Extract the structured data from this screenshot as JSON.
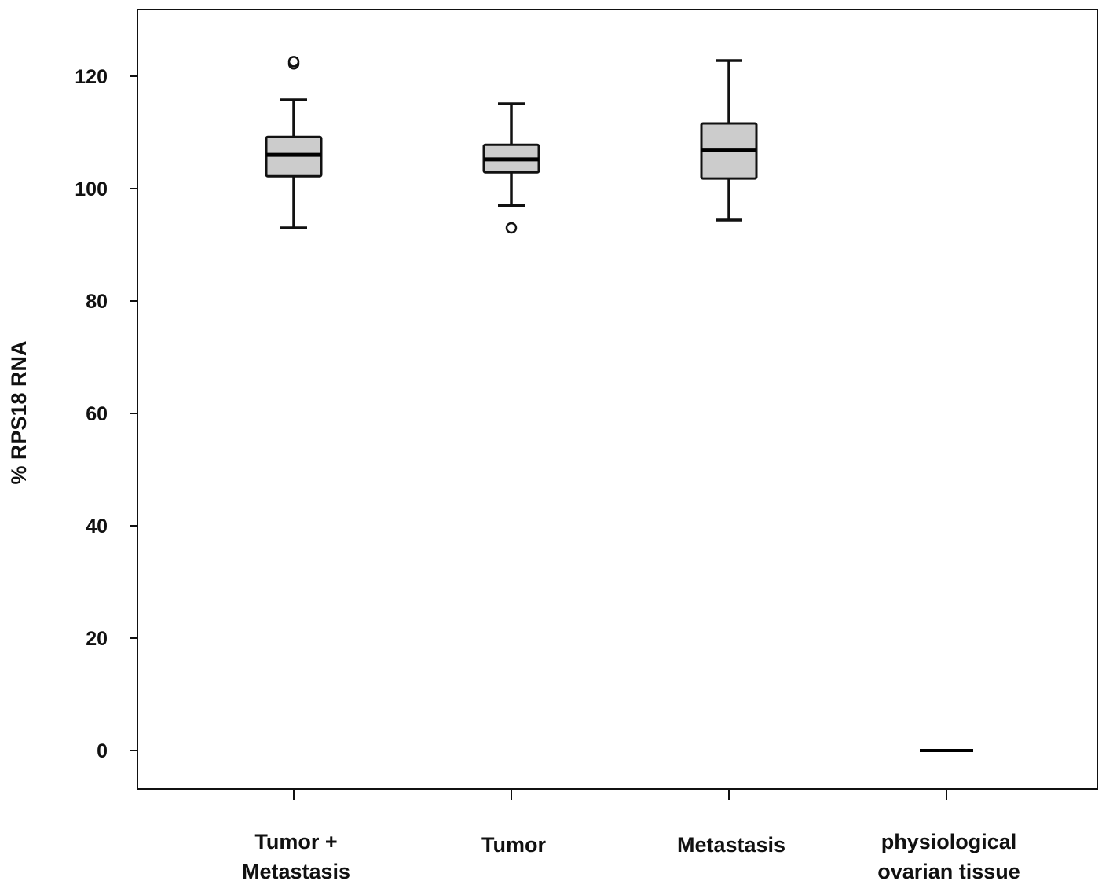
{
  "chart_data": {
    "type": "box",
    "title": "",
    "xlabel": "",
    "ylabel": "% RPS18 RNA",
    "ylim": [
      0,
      130
    ],
    "yticks": [
      0,
      20,
      40,
      60,
      80,
      100,
      120
    ],
    "grid": false,
    "box_fill": "#cccccc",
    "categories": [
      [
        "Tumor +",
        "Metastasis"
      ],
      [
        "Tumor"
      ],
      [
        "Metastasis"
      ],
      [
        "physiological",
        "ovarian tissue"
      ]
    ],
    "boxes": [
      {
        "whisker_low": 93.0,
        "q1": 102.2,
        "median": 106.0,
        "q3": 109.2,
        "whisker_high": 115.8,
        "outliers": [
          122.2,
          122.6
        ]
      },
      {
        "whisker_low": 97.0,
        "q1": 102.9,
        "median": 105.2,
        "q3": 107.8,
        "whisker_high": 115.1,
        "outliers": [
          93.0
        ]
      },
      {
        "whisker_low": 94.4,
        "q1": 101.8,
        "median": 106.9,
        "q3": 111.6,
        "whisker_high": 122.8,
        "outliers": []
      },
      {
        "whisker_low": 0,
        "q1": 0,
        "median": 0,
        "q3": 0,
        "whisker_high": 0,
        "outliers": []
      }
    ]
  }
}
